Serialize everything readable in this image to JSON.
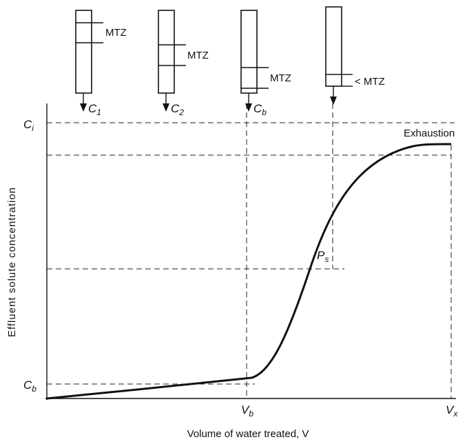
{
  "columns": [
    {
      "zone_label": "MTZ",
      "outlet": {
        "main": "C",
        "sub": "1"
      }
    },
    {
      "zone_label": "MTZ",
      "outlet": {
        "main": "C",
        "sub": "2"
      }
    },
    {
      "zone_label": "MTZ",
      "outlet": {
        "main": "C",
        "sub": "b"
      }
    },
    {
      "zone_label": "< MTZ"
    }
  ],
  "y_axis": {
    "label": "Effluent solute concentration",
    "levels": [
      {
        "main": "C",
        "sub": "i"
      },
      {
        "main": "C",
        "sub": "b"
      }
    ]
  },
  "x_axis": {
    "label": "Volume of water treated, V",
    "marks": [
      {
        "main": "V",
        "sub": "b"
      },
      {
        "main": "V",
        "sub": "x"
      }
    ]
  },
  "annotations": {
    "exhaustion": "Exhaustion",
    "point": {
      "main": "P",
      "sub": "s"
    }
  }
}
